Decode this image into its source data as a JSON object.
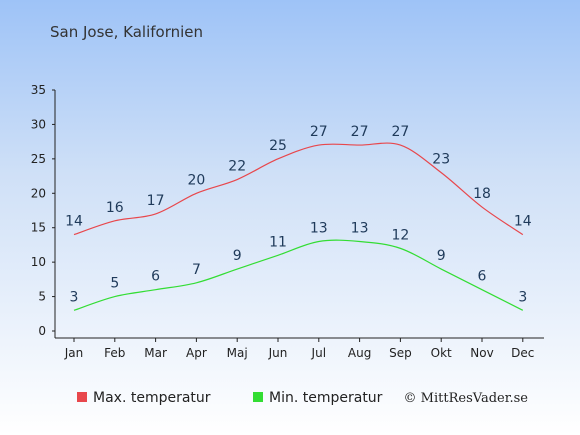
{
  "chart_data": {
    "type": "line",
    "title": "San Jose, Kalifornien",
    "categories": [
      "Jan",
      "Feb",
      "Mar",
      "Apr",
      "Maj",
      "Jun",
      "Jul",
      "Aug",
      "Sep",
      "Okt",
      "Nov",
      "Dec"
    ],
    "series": [
      {
        "name": "Max. temperatur",
        "color": "#e8474c",
        "values": [
          14,
          16,
          17,
          20,
          22,
          25,
          27,
          27,
          27,
          23,
          18,
          14
        ]
      },
      {
        "name": "Min. temperatur",
        "color": "#33dd33",
        "values": [
          3,
          5,
          6,
          7,
          9,
          11,
          13,
          13,
          12,
          9,
          6,
          3
        ]
      }
    ],
    "ylim": [
      0,
      35
    ],
    "yticks": [
      0,
      5,
      10,
      15,
      20,
      25,
      30,
      35
    ],
    "grid": false,
    "legend_position": "bottom",
    "credit": "© MittResVader.se"
  }
}
